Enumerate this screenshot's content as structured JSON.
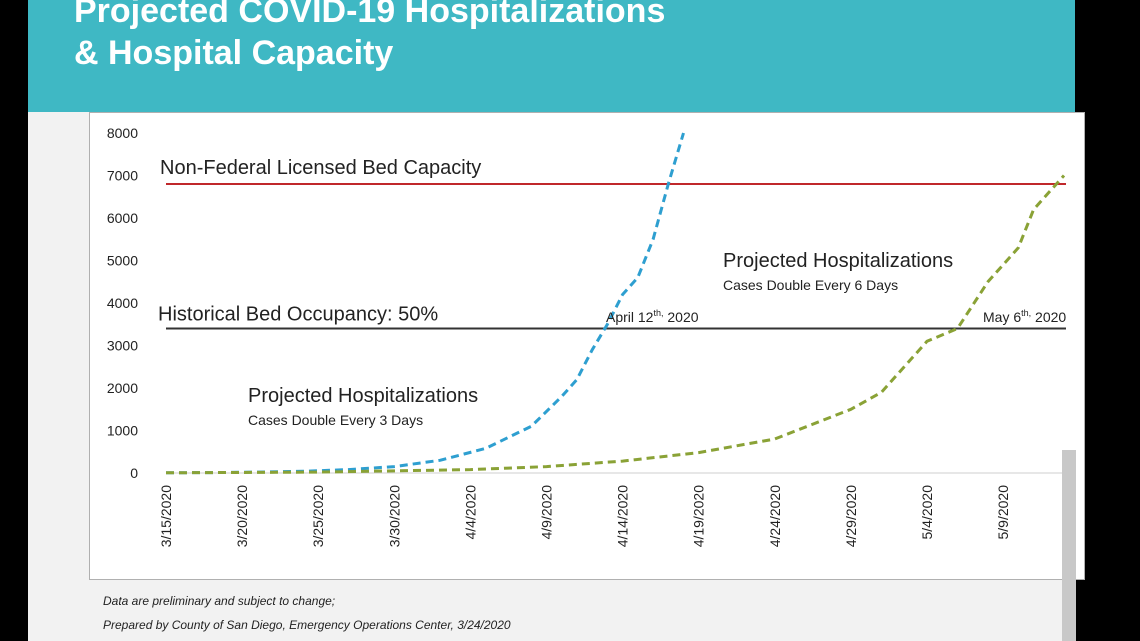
{
  "title": [
    "Projected COVID-19 Hospitalizations",
    "& Hospital Capacity"
  ],
  "footnotes": [
    "Data are preliminary and subject to change;",
    "Prepared by County of San Diego, Emergency Operations Center, 3/24/2020"
  ],
  "colors": {
    "header": "#3fb8c4",
    "capacity_line": "#c0282b",
    "occupancy_line": "#333333",
    "series_3day": "#2e9fd0",
    "series_6day": "#8aa236"
  },
  "chart_data": {
    "type": "line",
    "x_unit": "date",
    "xlim": [
      "3/15/2020",
      "5/13/2020"
    ],
    "ylim": [
      0,
      8000
    ],
    "yticks": [
      0,
      1000,
      2000,
      3000,
      4000,
      5000,
      6000,
      7000,
      8000
    ],
    "xticks": [
      "3/15/2020",
      "3/20/2020",
      "3/25/2020",
      "3/30/2020",
      "4/4/2020",
      "4/9/2020",
      "4/14/2020",
      "4/19/2020",
      "4/24/2020",
      "4/29/2020",
      "5/4/2020",
      "5/9/2020"
    ],
    "grid": false,
    "reference_lines": [
      {
        "label": "Non-Federal Licensed Bed Capacity",
        "y": 6800,
        "color": "#c0282b"
      },
      {
        "label": "Historical Bed Occupancy: 50%",
        "y": 3400,
        "color": "#333333"
      }
    ],
    "series": [
      {
        "name": "Projected Hospitalizations",
        "sublabel": "Cases Double Every 3 Days",
        "style": "dashed",
        "color": "#2e9fd0",
        "points": [
          [
            "3/15/2020",
            5
          ],
          [
            "3/18/2020",
            10
          ],
          [
            "3/21/2020",
            20
          ],
          [
            "3/24/2020",
            40
          ],
          [
            "3/27/2020",
            80
          ],
          [
            "3/30/2020",
            150
          ],
          [
            "4/2/2020",
            300
          ],
          [
            "4/5/2020",
            580
          ],
          [
            "4/8/2020",
            1100
          ],
          [
            "4/10/2020",
            1800
          ],
          [
            "4/11/2020",
            2200
          ],
          [
            "4/12/2020",
            2900
          ],
          [
            "4/13/2020",
            3500
          ],
          [
            "4/14/2020",
            4200
          ],
          [
            "4/15/2020",
            4600
          ],
          [
            "4/16/2020",
            5500
          ],
          [
            "4/17/2020",
            6800
          ],
          [
            "4/18/2020",
            8000
          ]
        ]
      },
      {
        "name": "Projected Hospitalizations",
        "sublabel": "Cases Double Every 6 Days",
        "style": "dashed",
        "color": "#8aa236",
        "points": [
          [
            "3/15/2020",
            5
          ],
          [
            "3/25/2020",
            20
          ],
          [
            "4/4/2020",
            80
          ],
          [
            "4/9/2020",
            150
          ],
          [
            "4/14/2020",
            280
          ],
          [
            "4/19/2020",
            480
          ],
          [
            "4/24/2020",
            800
          ],
          [
            "4/29/2020",
            1500
          ],
          [
            "5/1/2020",
            1900
          ],
          [
            "5/3/2020",
            2700
          ],
          [
            "5/4/2020",
            3100
          ],
          [
            "5/6/2020",
            3400
          ],
          [
            "5/8/2020",
            4500
          ],
          [
            "5/10/2020",
            5300
          ],
          [
            "5/11/2020",
            6200
          ],
          [
            "5/13/2020",
            7000
          ]
        ]
      }
    ],
    "annotations": [
      {
        "text": "April 12",
        "sup": "th,",
        "tail": " 2020",
        "x": "4/12/2020",
        "y": 3400
      },
      {
        "text": "May 6",
        "sup": "th,",
        "tail": " 2020",
        "x": "5/6/2020",
        "y": 3400
      }
    ]
  }
}
